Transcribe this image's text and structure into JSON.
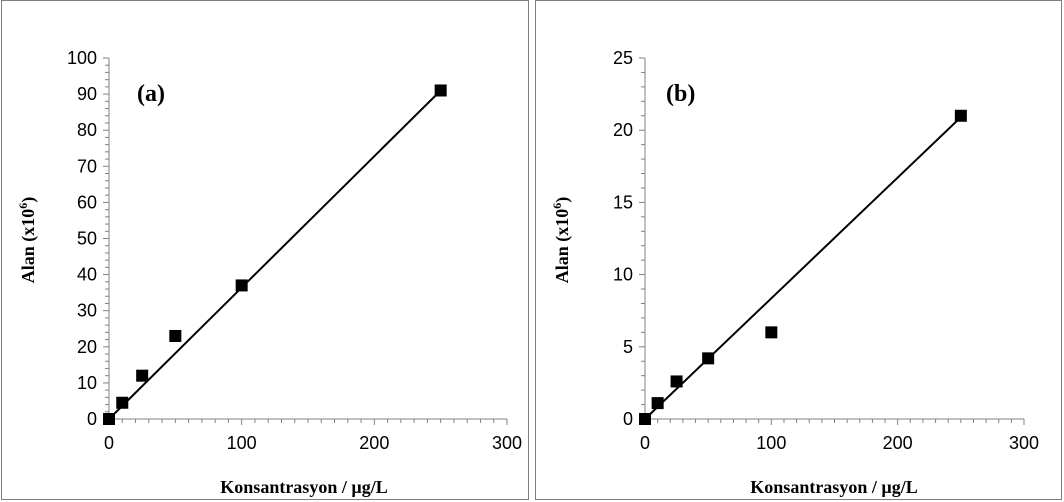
{
  "chart_data": [
    {
      "type": "scatter",
      "panel_label": "(a)",
      "xlabel": "Konsantrasyon / µg/L",
      "ylabel": "Alan  (x10",
      "ylabel_sup": "6",
      "ylabel_close": ")",
      "xlim": [
        0,
        300
      ],
      "ylim": [
        0,
        100
      ],
      "xticks": [
        0,
        100,
        200,
        300
      ],
      "yticks": [
        0,
        10,
        20,
        30,
        40,
        50,
        60,
        70,
        80,
        90,
        100
      ],
      "grid": false,
      "series": [
        {
          "x": [
            0,
            10,
            25,
            50,
            100,
            250
          ],
          "y": [
            0,
            4.5,
            12,
            23,
            37,
            91
          ]
        }
      ],
      "trendline": {
        "x": [
          0,
          250
        ],
        "y": [
          0,
          91
        ]
      },
      "colors": {
        "marker": "#000000",
        "line": "#000000"
      }
    },
    {
      "type": "scatter",
      "panel_label": "(b)",
      "xlabel": "Konsantrasyon / µg/L",
      "ylabel": "Alan  (x10",
      "ylabel_sup": "6",
      "ylabel_close": ")",
      "xlim": [
        0,
        300
      ],
      "ylim": [
        0,
        25
      ],
      "xticks": [
        0,
        100,
        200,
        300
      ],
      "yticks": [
        0,
        5,
        10,
        15,
        20,
        25
      ],
      "grid": false,
      "series": [
        {
          "x": [
            0,
            10,
            25,
            50,
            100,
            250
          ],
          "y": [
            0,
            1.1,
            2.6,
            4.2,
            6,
            21
          ]
        }
      ],
      "trendline": {
        "x": [
          0,
          250
        ],
        "y": [
          0,
          20.9
        ]
      },
      "colors": {
        "marker": "#000000",
        "line": "#000000"
      }
    }
  ]
}
